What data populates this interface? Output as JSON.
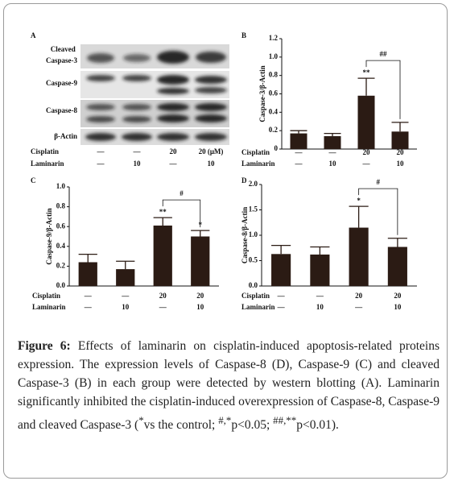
{
  "panel_a": {
    "panel": "A",
    "rows": [
      "Cleaved Caspase-3",
      "Caspase-9",
      "Caspase-8",
      "β-Actin"
    ],
    "groups": [
      {
        "name": "Cisplatin",
        "labels": [
          "—",
          "—",
          "20",
          "20 (μM)"
        ]
      },
      {
        "name": "Laminarin",
        "labels": [
          "—",
          "10",
          "—",
          "10"
        ]
      }
    ]
  },
  "chart_data": [
    {
      "type": "bar",
      "panel": "B",
      "y_label": "Caspase-3/β-Actin",
      "groups": [
        {
          "name": "Cisplatin",
          "labels": [
            "—",
            "—",
            "20",
            "20"
          ]
        },
        {
          "name": "Laminarin",
          "labels": [
            "—",
            "10",
            "—",
            "10"
          ]
        }
      ],
      "values": [
        0.17,
        0.14,
        0.58,
        0.19
      ],
      "errors": [
        0.03,
        0.03,
        0.19,
        0.1
      ],
      "color": "#2b1b14",
      "ylim": [
        0,
        1.2
      ],
      "yticks": [
        0,
        0.2,
        0.4,
        0.6,
        0.8,
        {
          "value": 1,
          "label": "1.0"
        },
        1.2
      ],
      "significance": [
        {
          "index": 2,
          "label": "**"
        }
      ],
      "bracket": {
        "from": 2,
        "to": 3,
        "label": "##"
      }
    },
    {
      "type": "bar",
      "panel": "C",
      "y_label": "Caspase-9/β-Actin",
      "groups": [
        {
          "name": "Cisplatin",
          "labels": [
            "—",
            "—",
            "20",
            "20"
          ]
        },
        {
          "name": "Laminarin",
          "labels": [
            "—",
            "10",
            "—",
            "10"
          ]
        }
      ],
      "values": [
        0.24,
        0.17,
        0.61,
        0.5
      ],
      "errors": [
        0.08,
        0.08,
        0.08,
        0.06
      ],
      "color": "#2b1b14",
      "ylim": [
        0,
        1
      ],
      "yticks": [
        {
          "value": 0,
          "label": "0.0"
        },
        0.2,
        0.4,
        0.6,
        0.8,
        {
          "value": 1,
          "label": "1.0"
        }
      ],
      "significance": [
        {
          "index": 2,
          "label": "**"
        },
        {
          "index": 3,
          "label": "*"
        }
      ],
      "bracket": {
        "from": 2,
        "to": 3,
        "label": "#"
      }
    },
    {
      "type": "bar",
      "panel": "D",
      "y_label": "Caspase-8/β-Actin",
      "groups": [
        {
          "name": "Cisplatin",
          "labels": [
            "—",
            "—",
            "20",
            "20"
          ]
        },
        {
          "name": "Laminarin",
          "labels": [
            "—",
            "10",
            "—",
            "10"
          ]
        }
      ],
      "values": [
        0.63,
        0.62,
        1.15,
        0.77
      ],
      "errors": [
        0.17,
        0.15,
        0.42,
        0.17
      ],
      "color": "#2b1b14",
      "ylim": [
        0,
        2
      ],
      "yticks": [
        {
          "value": 0,
          "label": "0.0"
        },
        0.5,
        {
          "value": 1,
          "label": "1.0"
        },
        1.5,
        {
          "value": 2,
          "label": "2.0"
        }
      ],
      "significance": [
        {
          "index": 2,
          "label": "*"
        }
      ],
      "bracket": {
        "from": 2,
        "to": 3,
        "label": "#"
      }
    }
  ],
  "caption": {
    "label": "Figure 6:",
    "text": " Effects of laminarin on cisplatin-induced apoptosis-related proteins expression. The expression levels of Caspase-8 (D), Caspase-9 (C) and cleaved Caspase-3 (B) in each group were detected by western blotting (A). Laminarin significantly inhibited the cisplatin-induced overexpression of Caspase-8, Caspase-9 and cleaved Caspase-3 (",
    "sup1": "*",
    "text2": "vs the control; ",
    "sup2": "#,*",
    "text3": "p<0.05; ",
    "sup3": "##,**",
    "text4": "p<0.01)."
  }
}
